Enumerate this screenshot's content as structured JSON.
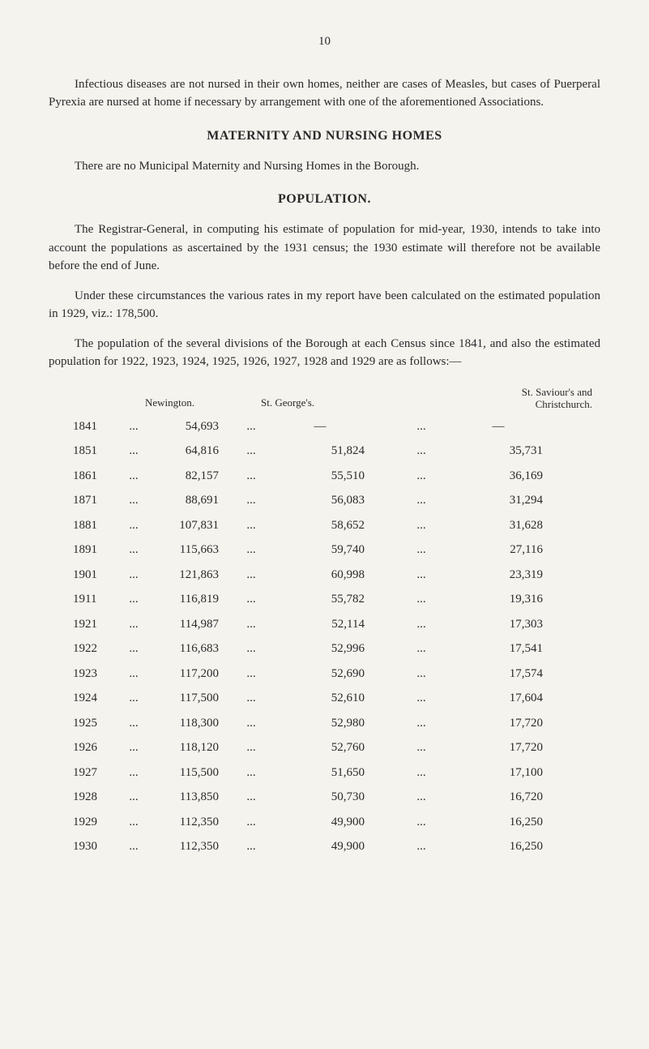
{
  "page_number": "10",
  "para1": "Infectious diseases are not nursed in their own homes, neither are cases of Measles, but cases of Puerperal Pyrexia are nursed at home if necessary by arrangement with one of the aforementioned Associations.",
  "heading1": "MATERNITY AND NURSING HOMES",
  "para2": "There are no Municipal Maternity and Nursing Homes in the Borough.",
  "heading2": "POPULATION.",
  "para3": "The Registrar-General, in computing his estimate of population for mid-year, 1930, intends to take into account the populations as ascertained by the 1931 census; the 1930 estimate will therefore not be available before the end of June.",
  "para4": "Under these circumstances the various rates in my report have been calculated on the estimated population in 1929, viz.: 178,500.",
  "para5": "The population of the several divisions of the Borough at each Census since 1841, and also the estimated population for 1922, 1923, 1924, 1925, 1926, 1927, 1928 and 1929 are as follows:—",
  "table": {
    "headers": {
      "newington": "Newington.",
      "george": "St. George's.",
      "saviour_line1": "St. Saviour's and",
      "saviour_line2": "Christchurch."
    },
    "rows": [
      {
        "year": "1841",
        "newington": "54,693",
        "george": "—",
        "saviour": "—"
      },
      {
        "year": "1851",
        "newington": "64,816",
        "george": "51,824",
        "saviour": "35,731"
      },
      {
        "year": "1861",
        "newington": "82,157",
        "george": "55,510",
        "saviour": "36,169"
      },
      {
        "year": "1871",
        "newington": "88,691",
        "george": "56,083",
        "saviour": "31,294"
      },
      {
        "year": "1881",
        "newington": "107,831",
        "george": "58,652",
        "saviour": "31,628"
      },
      {
        "year": "1891",
        "newington": "115,663",
        "george": "59,740",
        "saviour": "27,116"
      },
      {
        "year": "1901",
        "newington": "121,863",
        "george": "60,998",
        "saviour": "23,319"
      },
      {
        "year": "1911",
        "newington": "116,819",
        "george": "55,782",
        "saviour": "19,316"
      },
      {
        "year": "1921",
        "newington": "114,987",
        "george": "52,114",
        "saviour": "17,303"
      },
      {
        "year": "1922",
        "newington": "116,683",
        "george": "52,996",
        "saviour": "17,541"
      },
      {
        "year": "1923",
        "newington": "117,200",
        "george": "52,690",
        "saviour": "17,574"
      },
      {
        "year": "1924",
        "newington": "117,500",
        "george": "52,610",
        "saviour": "17,604"
      },
      {
        "year": "1925",
        "newington": "118,300",
        "george": "52,980",
        "saviour": "17,720"
      },
      {
        "year": "1926",
        "newington": "118,120",
        "george": "52,760",
        "saviour": "17,720"
      },
      {
        "year": "1927",
        "newington": "115,500",
        "george": "51,650",
        "saviour": "17,100"
      },
      {
        "year": "1928",
        "newington": "113,850",
        "george": "50,730",
        "saviour": "16,720"
      },
      {
        "year": "1929",
        "newington": "112,350",
        "george": "49,900",
        "saviour": "16,250"
      },
      {
        "year": "1930",
        "newington": "112,350",
        "george": "49,900",
        "saviour": "16,250"
      }
    ],
    "dots": "..."
  }
}
